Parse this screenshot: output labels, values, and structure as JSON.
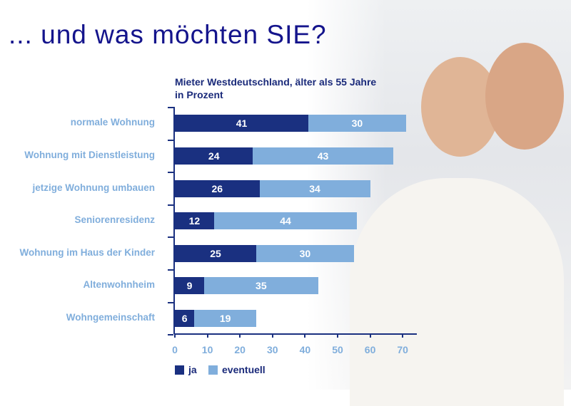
{
  "page_title": "... und was möchten SIE?",
  "chart_data": {
    "type": "bar",
    "orientation": "horizontal",
    "stacked": true,
    "title": "Mieter Westdeutschland, älter als 55 Jahre",
    "subtitle": "in Prozent",
    "categories": [
      "normale Wohnung",
      "Wohnung mit Dienstleistung",
      "jetzige Wohnung umbauen",
      "Seniorenresidenz",
      "Wohnung im Haus der Kinder",
      "Altenwohnheim",
      "Wohngemeinschaft"
    ],
    "series": [
      {
        "name": "ja",
        "color": "#1a3080",
        "values": [
          41,
          24,
          26,
          12,
          25,
          9,
          6
        ]
      },
      {
        "name": "eventuell",
        "color": "#80aedc",
        "values": [
          30,
          43,
          34,
          44,
          30,
          35,
          19
        ]
      }
    ],
    "xlim": [
      0,
      70
    ],
    "xticks": [
      "0",
      "10",
      "20",
      "30",
      "40",
      "50",
      "60",
      "70"
    ],
    "legend": "bottom-left"
  }
}
